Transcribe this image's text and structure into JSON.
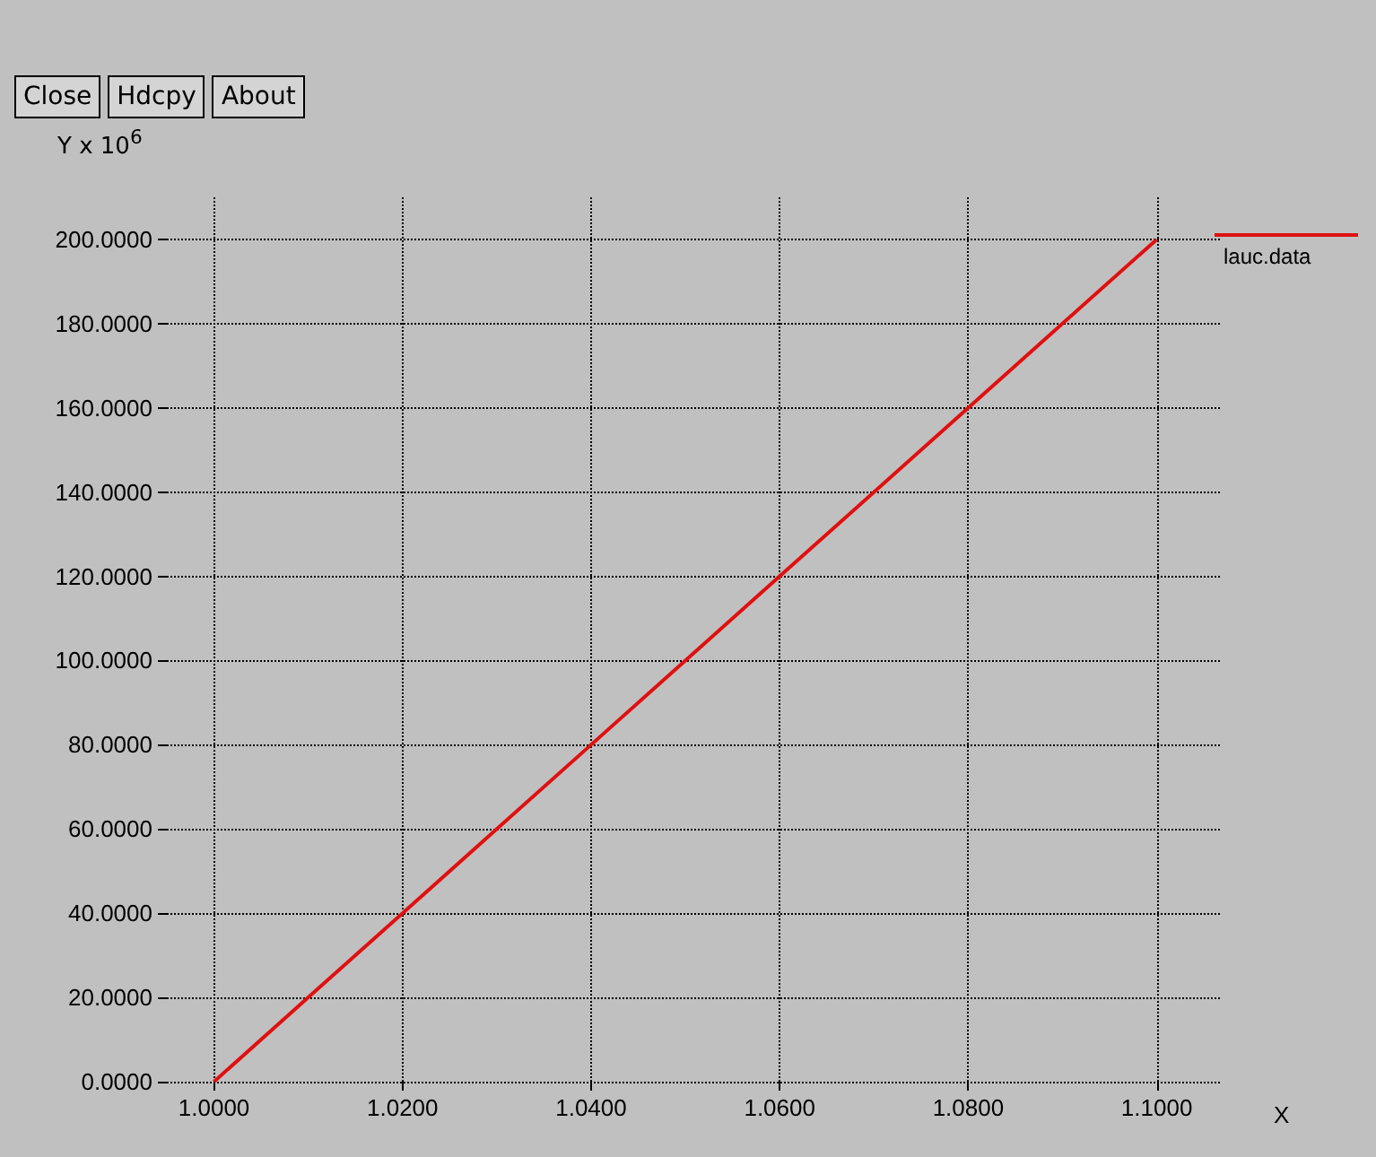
{
  "chart_data": {
    "type": "line",
    "ylabel": "Y x 10$^{6}$",
    "xlabel": "X",
    "annotations": [
      "Close",
      "Hdcpy",
      "About"
    ],
    "x": [
      1.0,
      1.01,
      1.02,
      1.03,
      1.04,
      1.05,
      1.06,
      1.07,
      1.08,
      1.09,
      1.1
    ],
    "series": [
      {
        "name": "lauc.data",
        "color": "#e01010",
        "values": [
          0,
          20,
          40,
          60,
          80,
          100,
          120,
          140,
          160,
          180,
          200
        ]
      }
    ],
    "xlim": [
      0.995,
      1.1067
    ],
    "ylim": [
      0,
      210
    ],
    "xticks": [
      {
        "value": 1.0,
        "label": "1.0000"
      },
      {
        "value": 1.02,
        "label": "1.0200"
      },
      {
        "value": 1.04,
        "label": "1.0400"
      },
      {
        "value": 1.06,
        "label": "1.0600"
      },
      {
        "value": 1.08,
        "label": "1.0800"
      },
      {
        "value": 1.1,
        "label": "1.1000"
      }
    ],
    "yticks": [
      {
        "value": 0,
        "label": "0.0000"
      },
      {
        "value": 20,
        "label": "20.0000"
      },
      {
        "value": 40,
        "label": "40.0000"
      },
      {
        "value": 60,
        "label": "60.0000"
      },
      {
        "value": 80,
        "label": "80.0000"
      },
      {
        "value": 100,
        "label": "100.0000"
      },
      {
        "value": 120,
        "label": "120.0000"
      },
      {
        "value": 140,
        "label": "140.0000"
      },
      {
        "value": 160,
        "label": "160.0000"
      },
      {
        "value": 180,
        "label": "180.0000"
      },
      {
        "value": 200,
        "label": "200.0000"
      }
    ],
    "grid": true,
    "legend": "top right",
    "marker": "none",
    "line_style": "solid"
  }
}
